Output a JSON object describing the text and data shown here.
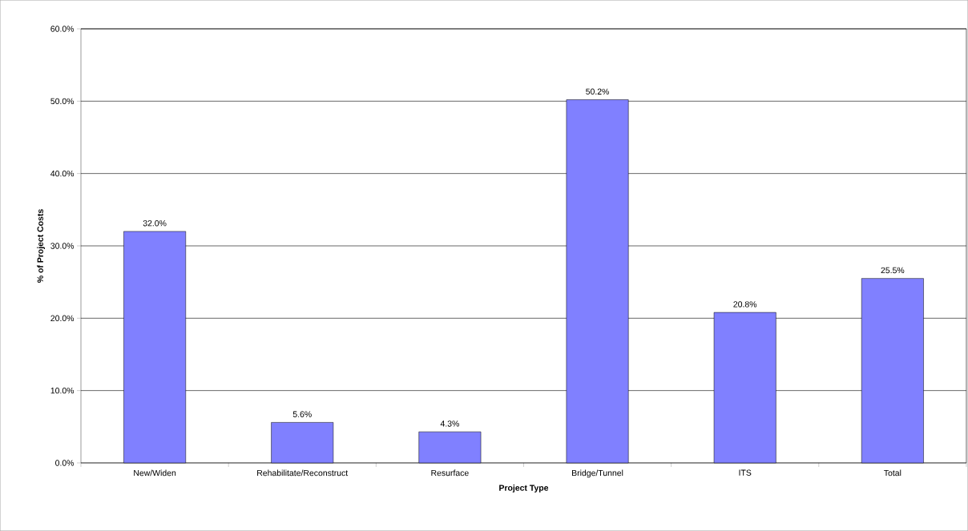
{
  "chart_data": {
    "type": "bar",
    "xlabel": "Project Type",
    "ylabel": "% of Project Costs",
    "categories": [
      "New/Widen",
      "Rehabilitate/Reconstruct",
      "Resurface",
      "Bridge/Tunnel",
      "ITS",
      "Total"
    ],
    "values": [
      32.0,
      5.6,
      4.3,
      50.2,
      20.8,
      25.5
    ],
    "value_labels": [
      "32.0%",
      "5.6%",
      "4.3%",
      "50.2%",
      "20.8%",
      "25.5%"
    ],
    "color": "#8080ff",
    "ylim": [
      0,
      60
    ],
    "yticks": [
      {
        "value": 0,
        "label": "0.0%"
      },
      {
        "value": 10,
        "label": "10.0%"
      },
      {
        "value": 20,
        "label": "20.0%"
      },
      {
        "value": 30,
        "label": "30.0%"
      },
      {
        "value": 40,
        "label": "40.0%"
      },
      {
        "value": 50,
        "label": "50.0%"
      },
      {
        "value": 60,
        "label": "60.0%"
      }
    ],
    "grid": "y"
  }
}
